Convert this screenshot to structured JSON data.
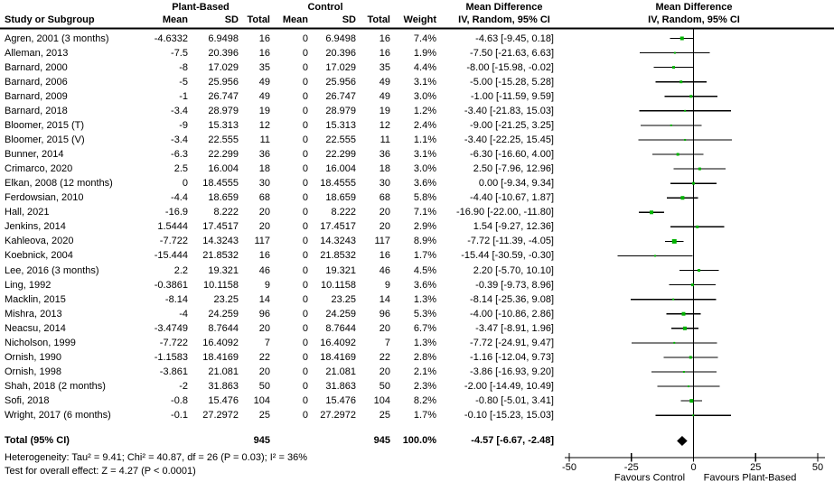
{
  "header": {
    "group1": "Plant-Based",
    "group2": "Control",
    "study_col": "Study or Subgroup",
    "mean1": "Mean",
    "sd1": "SD",
    "total1": "Total",
    "mean2": "Mean",
    "sd2": "SD",
    "total2": "Total",
    "weight": "Weight",
    "md_title": "Mean Difference",
    "md_sub": "IV, Random, 95% CI",
    "plot_title": "Mean Difference",
    "plot_sub": "IV, Random, 95% CI"
  },
  "chart_data": {
    "type": "forest",
    "effect_measure": "Mean Difference, IV, Random, 95% CI",
    "axis": {
      "min": -50,
      "max": 50,
      "ticks": [
        -50,
        -25,
        0,
        25,
        50
      ],
      "tick_labels": [
        "-50",
        "-25",
        "0",
        "25",
        "50"
      ]
    },
    "favours_left": "Favours Control",
    "favours_right": "Favours Plant-Based",
    "studies": [
      {
        "label": "Agren, 2001 (3 months)",
        "mean1": "-4.6332",
        "sd1": "6.9498",
        "n1": "16",
        "mean2": "0",
        "sd2": "6.9498",
        "n2": "16",
        "weight": "7.4%",
        "ci_text": "-4.63 [-9.45, 0.18]",
        "md": -4.63,
        "lo": -9.45,
        "hi": 0.18,
        "w": 7.4
      },
      {
        "label": "Alleman, 2013",
        "mean1": "-7.5",
        "sd1": "20.396",
        "n1": "16",
        "mean2": "0",
        "sd2": "20.396",
        "n2": "16",
        "weight": "1.9%",
        "ci_text": "-7.50 [-21.63, 6.63]",
        "md": -7.5,
        "lo": -21.63,
        "hi": 6.63,
        "w": 1.9
      },
      {
        "label": "Barnard, 2000",
        "mean1": "-8",
        "sd1": "17.029",
        "n1": "35",
        "mean2": "0",
        "sd2": "17.029",
        "n2": "35",
        "weight": "4.4%",
        "ci_text": "-8.00 [-15.98, -0.02]",
        "md": -8,
        "lo": -15.98,
        "hi": -0.02,
        "w": 4.4
      },
      {
        "label": "Barnard, 2006",
        "mean1": "-5",
        "sd1": "25.956",
        "n1": "49",
        "mean2": "0",
        "sd2": "25.956",
        "n2": "49",
        "weight": "3.1%",
        "ci_text": "-5.00 [-15.28, 5.28]",
        "md": -5,
        "lo": -15.28,
        "hi": 5.28,
        "w": 3.1
      },
      {
        "label": "Barnard, 2009",
        "mean1": "-1",
        "sd1": "26.747",
        "n1": "49",
        "mean2": "0",
        "sd2": "26.747",
        "n2": "49",
        "weight": "3.0%",
        "ci_text": "-1.00 [-11.59, 9.59]",
        "md": -1,
        "lo": -11.59,
        "hi": 9.59,
        "w": 3.0
      },
      {
        "label": "Barnard, 2018",
        "mean1": "-3.4",
        "sd1": "28.979",
        "n1": "19",
        "mean2": "0",
        "sd2": "28.979",
        "n2": "19",
        "weight": "1.2%",
        "ci_text": "-3.40 [-21.83, 15.03]",
        "md": -3.4,
        "lo": -21.83,
        "hi": 15.03,
        "w": 1.2
      },
      {
        "label": "Bloomer, 2015 (T)",
        "mean1": "-9",
        "sd1": "15.313",
        "n1": "12",
        "mean2": "0",
        "sd2": "15.313",
        "n2": "12",
        "weight": "2.4%",
        "ci_text": "-9.00 [-21.25, 3.25]",
        "md": -9,
        "lo": -21.25,
        "hi": 3.25,
        "w": 2.4
      },
      {
        "label": "Bloomer, 2015 (V)",
        "mean1": "-3.4",
        "sd1": "22.555",
        "n1": "11",
        "mean2": "0",
        "sd2": "22.555",
        "n2": "11",
        "weight": "1.1%",
        "ci_text": "-3.40 [-22.25, 15.45]",
        "md": -3.4,
        "lo": -22.25,
        "hi": 15.45,
        "w": 1.1
      },
      {
        "label": "Bunner, 2014",
        "mean1": "-6.3",
        "sd1": "22.299",
        "n1": "36",
        "mean2": "0",
        "sd2": "22.299",
        "n2": "36",
        "weight": "3.1%",
        "ci_text": "-6.30 [-16.60, 4.00]",
        "md": -6.3,
        "lo": -16.6,
        "hi": 4.0,
        "w": 3.1
      },
      {
        "label": "Crimarco, 2020",
        "mean1": "2.5",
        "sd1": "16.004",
        "n1": "18",
        "mean2": "0",
        "sd2": "16.004",
        "n2": "18",
        "weight": "3.0%",
        "ci_text": "2.50 [-7.96, 12.96]",
        "md": 2.5,
        "lo": -7.96,
        "hi": 12.96,
        "w": 3.0
      },
      {
        "label": "Elkan, 2008 (12 months)",
        "mean1": "0",
        "sd1": "18.4555",
        "n1": "30",
        "mean2": "0",
        "sd2": "18.4555",
        "n2": "30",
        "weight": "3.6%",
        "ci_text": "0.00 [-9.34, 9.34]",
        "md": 0,
        "lo": -9.34,
        "hi": 9.34,
        "w": 3.6
      },
      {
        "label": "Ferdowsian, 2010",
        "mean1": "-4.4",
        "sd1": "18.659",
        "n1": "68",
        "mean2": "0",
        "sd2": "18.659",
        "n2": "68",
        "weight": "5.8%",
        "ci_text": "-4.40 [-10.67, 1.87]",
        "md": -4.4,
        "lo": -10.67,
        "hi": 1.87,
        "w": 5.8
      },
      {
        "label": "Hall, 2021",
        "mean1": "-16.9",
        "sd1": "8.222",
        "n1": "20",
        "mean2": "0",
        "sd2": "8.222",
        "n2": "20",
        "weight": "7.1%",
        "ci_text": "-16.90 [-22.00, -11.80]",
        "md": -16.9,
        "lo": -22.0,
        "hi": -11.8,
        "w": 7.1
      },
      {
        "label": "Jenkins, 2014",
        "mean1": "1.5444",
        "sd1": "17.4517",
        "n1": "20",
        "mean2": "0",
        "sd2": "17.4517",
        "n2": "20",
        "weight": "2.9%",
        "ci_text": "1.54 [-9.27, 12.36]",
        "md": 1.54,
        "lo": -9.27,
        "hi": 12.36,
        "w": 2.9
      },
      {
        "label": "Kahleova, 2020",
        "mean1": "-7.722",
        "sd1": "14.3243",
        "n1": "117",
        "mean2": "0",
        "sd2": "14.3243",
        "n2": "117",
        "weight": "8.9%",
        "ci_text": "-7.72 [-11.39, -4.05]",
        "md": -7.72,
        "lo": -11.39,
        "hi": -4.05,
        "w": 8.9
      },
      {
        "label": "Koebnick, 2004",
        "mean1": "-15.444",
        "sd1": "21.8532",
        "n1": "16",
        "mean2": "0",
        "sd2": "21.8532",
        "n2": "16",
        "weight": "1.7%",
        "ci_text": "-15.44 [-30.59, -0.30]",
        "md": -15.44,
        "lo": -30.59,
        "hi": -0.3,
        "w": 1.7
      },
      {
        "label": "Lee, 2016 (3 months)",
        "mean1": "2.2",
        "sd1": "19.321",
        "n1": "46",
        "mean2": "0",
        "sd2": "19.321",
        "n2": "46",
        "weight": "4.5%",
        "ci_text": "2.20 [-5.70, 10.10]",
        "md": 2.2,
        "lo": -5.7,
        "hi": 10.1,
        "w": 4.5
      },
      {
        "label": "Ling, 1992",
        "mean1": "-0.3861",
        "sd1": "10.1158",
        "n1": "9",
        "mean2": "0",
        "sd2": "10.1158",
        "n2": "9",
        "weight": "3.6%",
        "ci_text": "-0.39 [-9.73, 8.96]",
        "md": -0.39,
        "lo": -9.73,
        "hi": 8.96,
        "w": 3.6
      },
      {
        "label": "Macklin, 2015",
        "mean1": "-8.14",
        "sd1": "23.25",
        "n1": "14",
        "mean2": "0",
        "sd2": "23.25",
        "n2": "14",
        "weight": "1.3%",
        "ci_text": "-8.14 [-25.36, 9.08]",
        "md": -8.14,
        "lo": -25.36,
        "hi": 9.08,
        "w": 1.3
      },
      {
        "label": "Mishra, 2013",
        "mean1": "-4",
        "sd1": "24.259",
        "n1": "96",
        "mean2": "0",
        "sd2": "24.259",
        "n2": "96",
        "weight": "5.3%",
        "ci_text": "-4.00 [-10.86, 2.86]",
        "md": -4,
        "lo": -10.86,
        "hi": 2.86,
        "w": 5.3
      },
      {
        "label": "Neacsu, 2014",
        "mean1": "-3.4749",
        "sd1": "8.7644",
        "n1": "20",
        "mean2": "0",
        "sd2": "8.7644",
        "n2": "20",
        "weight": "6.7%",
        "ci_text": "-3.47 [-8.91, 1.96]",
        "md": -3.47,
        "lo": -8.91,
        "hi": 1.96,
        "w": 6.7
      },
      {
        "label": "Nicholson, 1999",
        "mean1": "-7.722",
        "sd1": "16.4092",
        "n1": "7",
        "mean2": "0",
        "sd2": "16.4092",
        "n2": "7",
        "weight": "1.3%",
        "ci_text": "-7.72 [-24.91, 9.47]",
        "md": -7.72,
        "lo": -24.91,
        "hi": 9.47,
        "w": 1.3
      },
      {
        "label": "Ornish, 1990",
        "mean1": "-1.1583",
        "sd1": "18.4169",
        "n1": "22",
        "mean2": "0",
        "sd2": "18.4169",
        "n2": "22",
        "weight": "2.8%",
        "ci_text": "-1.16 [-12.04, 9.73]",
        "md": -1.16,
        "lo": -12.04,
        "hi": 9.73,
        "w": 2.8
      },
      {
        "label": "Ornish, 1998",
        "mean1": "-3.861",
        "sd1": "21.081",
        "n1": "20",
        "mean2": "0",
        "sd2": "21.081",
        "n2": "20",
        "weight": "2.1%",
        "ci_text": "-3.86 [-16.93, 9.20]",
        "md": -3.86,
        "lo": -16.93,
        "hi": 9.2,
        "w": 2.1
      },
      {
        "label": "Shah, 2018 (2 months)",
        "mean1": "-2",
        "sd1": "31.863",
        "n1": "50",
        "mean2": "0",
        "sd2": "31.863",
        "n2": "50",
        "weight": "2.3%",
        "ci_text": "-2.00 [-14.49, 10.49]",
        "md": -2,
        "lo": -14.49,
        "hi": 10.49,
        "w": 2.3
      },
      {
        "label": "Sofi, 2018",
        "mean1": "-0.8",
        "sd1": "15.476",
        "n1": "104",
        "mean2": "0",
        "sd2": "15.476",
        "n2": "104",
        "weight": "8.2%",
        "ci_text": "-0.80 [-5.01, 3.41]",
        "md": -0.8,
        "lo": -5.01,
        "hi": 3.41,
        "w": 8.2
      },
      {
        "label": "Wright, 2017 (6 months)",
        "mean1": "-0.1",
        "sd1": "27.2972",
        "n1": "25",
        "mean2": "0",
        "sd2": "27.2972",
        "n2": "25",
        "weight": "1.7%",
        "ci_text": "-0.10 [-15.23, 15.03]",
        "md": -0.1,
        "lo": -15.23,
        "hi": 15.03,
        "w": 1.7
      }
    ],
    "total": {
      "label": "Total (95% CI)",
      "n1": "945",
      "n2": "945",
      "weight": "100.0%",
      "ci_text": "-4.57 [-6.67, -2.48]",
      "md": -4.57,
      "lo": -6.67,
      "hi": -2.48
    }
  },
  "footer": {
    "heterogeneity": "Heterogeneity: Tau² = 9.41; Chi² = 40.87, df = 26 (P = 0.03); I² = 36%",
    "overall": "Test for overall effect: Z = 4.27 (P < 0.0001)"
  },
  "colors": {
    "marker": "#00B200",
    "diamond": "#000000",
    "line": "#000000",
    "text": "#000000"
  }
}
